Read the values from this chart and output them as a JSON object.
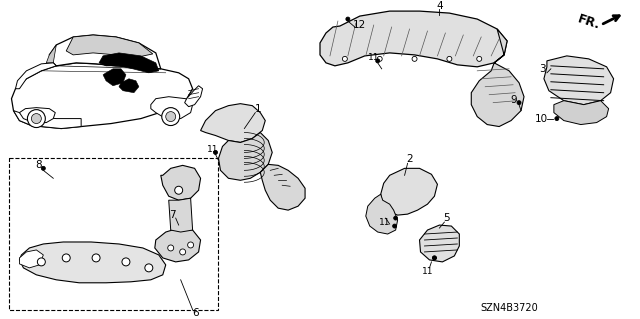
{
  "background_color": "#ffffff",
  "line_color": "#000000",
  "diagram_code": "SZN4B3720",
  "fr_label": "FR.",
  "gray_fill": "#d8d8d8",
  "light_gray": "#ebebeb",
  "white": "#ffffff"
}
